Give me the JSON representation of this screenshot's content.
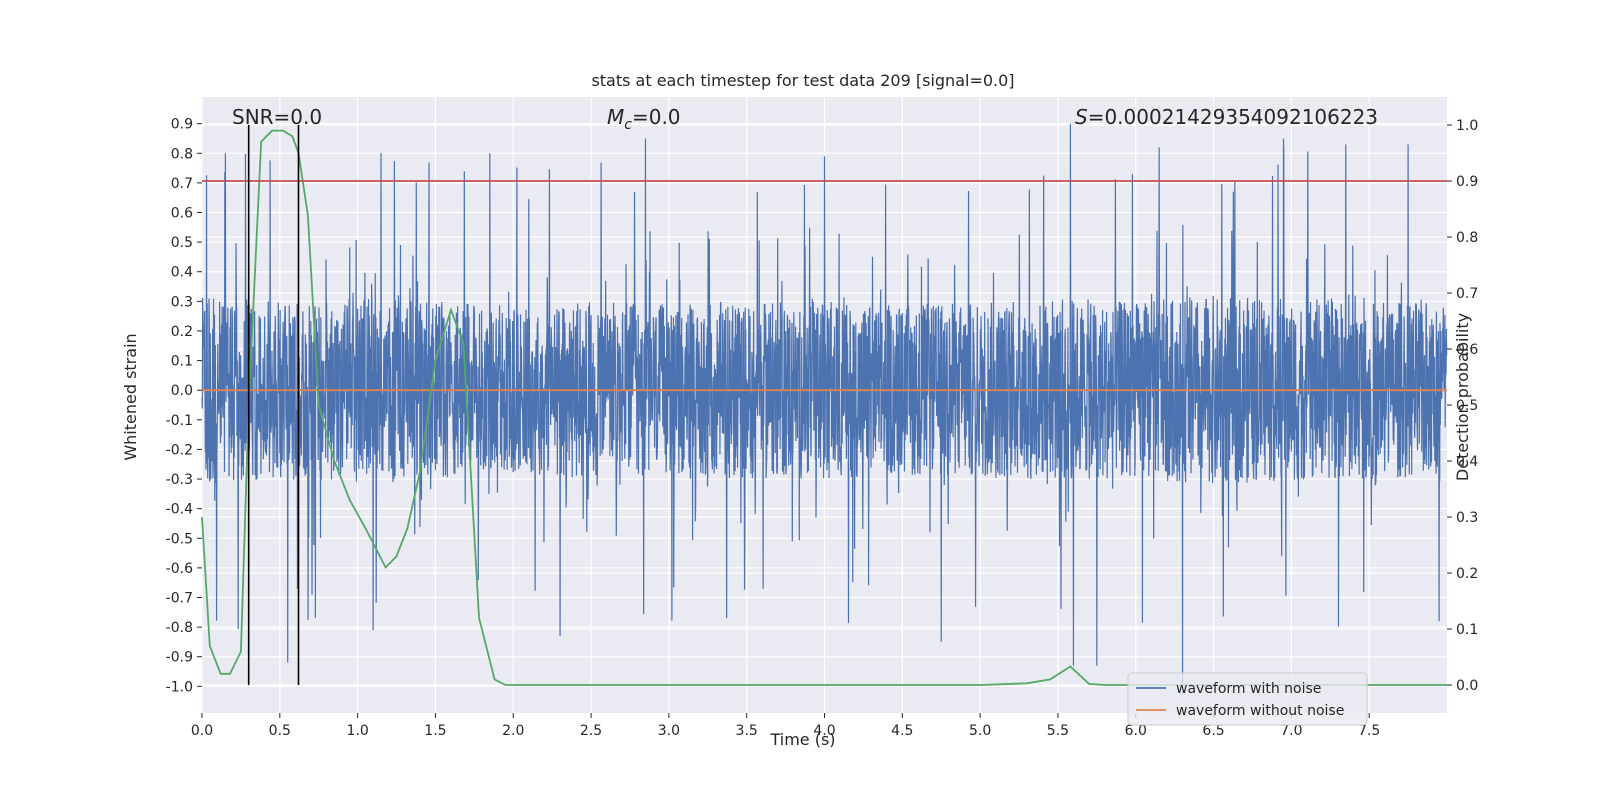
{
  "chart_data": {
    "type": "line",
    "title": "stats at each timestep for test data 209 [signal=0.0]",
    "xlabel": "Time (s)",
    "ylabel_left": "Whitened strain",
    "ylabel_right": "Detection probability",
    "xlim": [
      0.0,
      8.0
    ],
    "ylim_left": [
      -1.09,
      0.99
    ],
    "ylim_right": [
      -0.05,
      1.05
    ],
    "xticks": [
      "0.0",
      "0.5",
      "1.0",
      "1.5",
      "2.0",
      "2.5",
      "3.0",
      "3.5",
      "4.0",
      "4.5",
      "5.0",
      "5.5",
      "6.0",
      "6.5",
      "7.0",
      "7.5"
    ],
    "yticks_left": [
      "0.9",
      "0.8",
      "0.7",
      "0.6",
      "0.5",
      "0.4",
      "0.3",
      "0.2",
      "0.1",
      "0.0",
      "-0.1",
      "-0.2",
      "-0.3",
      "-0.4",
      "-0.5",
      "-0.6",
      "-0.7",
      "-0.8",
      "-0.9",
      "-1.0"
    ],
    "yticks_right": [
      "1.0",
      "0.9",
      "0.8",
      "0.7",
      "0.6",
      "0.5",
      "0.4",
      "0.3",
      "0.2",
      "0.1",
      "0.0"
    ],
    "grid": true,
    "legend_position": "lower-right",
    "annotations": {
      "snr": "SNR=0.0",
      "mc_symbol": "M",
      "mc_sub": "c",
      "mc_value": "=0.0",
      "s_symbol": "S",
      "s_value": "=0.00021429354092106223"
    },
    "colors": {
      "background": "#eaeaf2",
      "grid": "#ffffff",
      "noise": "#4c72b0",
      "clean": "#dd8452",
      "prob": "#55a868",
      "threshold": "#c44e52",
      "vline": "#000000"
    },
    "series": [
      {
        "name": "waveform with noise",
        "axis": "left",
        "style": "noise",
        "envelope_x": [
          0.0,
          0.5,
          1.0,
          1.5,
          2.0,
          2.5,
          3.0,
          3.5,
          4.0,
          4.5,
          5.0,
          5.5,
          6.0,
          6.5,
          7.0,
          7.5,
          8.0
        ],
        "envelope_y": [
          0.32,
          0.3,
          0.31,
          0.3,
          0.28,
          0.3,
          0.29,
          0.3,
          0.3,
          0.29,
          0.3,
          0.31,
          0.3,
          0.32,
          0.31,
          0.3,
          0.31
        ],
        "peaks": [
          [
            0.15,
            0.8
          ],
          [
            0.55,
            0.62
          ],
          [
            1.85,
            0.8
          ],
          [
            2.85,
            0.85
          ],
          [
            4.0,
            0.79
          ],
          [
            5.58,
            0.9
          ],
          [
            6.15,
            0.82
          ],
          [
            6.95,
            0.85
          ],
          [
            7.35,
            0.83
          ],
          [
            7.75,
            0.83
          ]
        ],
        "troughs": [
          [
            0.55,
            -0.92
          ],
          [
            1.1,
            -0.81
          ],
          [
            2.3,
            -0.83
          ],
          [
            4.75,
            -0.85
          ],
          [
            5.6,
            -0.93
          ],
          [
            5.75,
            -0.93
          ],
          [
            6.3,
            -1.03
          ],
          [
            7.95,
            -0.78
          ]
        ]
      },
      {
        "name": "waveform without noise",
        "axis": "left",
        "x": [
          0.0,
          8.0
        ],
        "y": [
          0.0,
          0.0
        ]
      },
      {
        "name": "",
        "axis": "right",
        "x": [
          0.0,
          0.05,
          0.12,
          0.18,
          0.25,
          0.3,
          0.38,
          0.45,
          0.52,
          0.58,
          0.62,
          0.68,
          0.75,
          0.85,
          0.95,
          1.05,
          1.18,
          1.25,
          1.32,
          1.4,
          1.5,
          1.6,
          1.68,
          1.78,
          1.88,
          1.95,
          5.0,
          5.3,
          5.45,
          5.58,
          5.7,
          5.8,
          6.0,
          8.0
        ],
        "y": [
          0.3,
          0.07,
          0.02,
          0.02,
          0.06,
          0.5,
          0.97,
          0.99,
          0.99,
          0.98,
          0.95,
          0.84,
          0.5,
          0.4,
          0.33,
          0.28,
          0.21,
          0.23,
          0.28,
          0.38,
          0.58,
          0.67,
          0.61,
          0.12,
          0.01,
          0.0,
          0.0,
          0.003,
          0.01,
          0.033,
          0.002,
          0.0,
          0.0,
          0.0
        ]
      },
      {
        "name": "",
        "axis": "right",
        "style": "threshold",
        "x": [
          0.0,
          8.0
        ],
        "y": [
          0.9,
          0.9
        ]
      }
    ],
    "vlines": [
      0.3,
      0.62
    ],
    "legend": [
      "waveform with noise",
      "waveform without noise"
    ]
  }
}
